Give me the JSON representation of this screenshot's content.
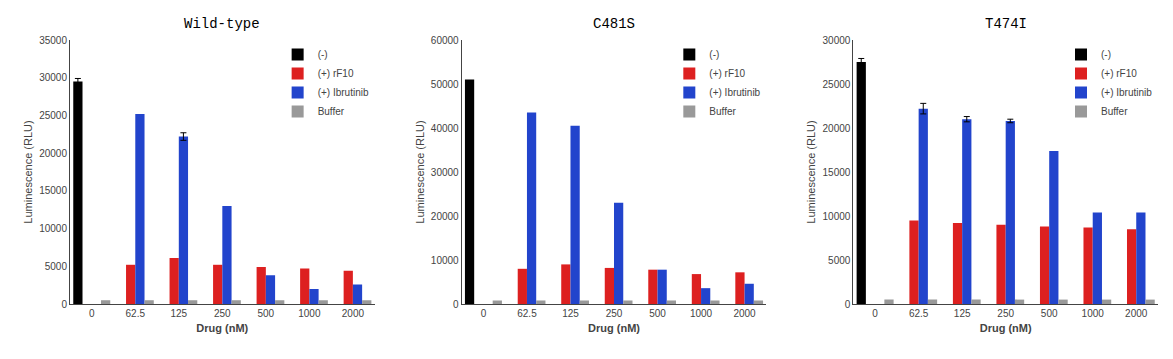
{
  "chart_data": [
    {
      "type": "bar",
      "title": "Wild-type",
      "xlabel": "Drug (nM)",
      "ylabel": "Luminescence (RLU)",
      "categories": [
        "0",
        "62.5",
        "125",
        "250",
        "500",
        "1000",
        "2000"
      ],
      "series": [
        {
          "name": "(-)",
          "color": "#000000",
          "values": [
            29500,
            0,
            0,
            0,
            0,
            0,
            0
          ],
          "errors": [
            400,
            0,
            0,
            0,
            0,
            0,
            0
          ]
        },
        {
          "name": "(+) rF10",
          "color": "#dd2020",
          "values": [
            0,
            5200,
            6100,
            5200,
            4900,
            4700,
            4400
          ],
          "errors": [
            0,
            0,
            0,
            0,
            0,
            0,
            0
          ]
        },
        {
          "name": "(+) Ibrutinib",
          "color": "#2244cc",
          "values": [
            0,
            25200,
            22200,
            13000,
            3800,
            2000,
            2600
          ],
          "errors": [
            0,
            0,
            500,
            0,
            0,
            0,
            0
          ]
        },
        {
          "name": "Buffer",
          "color": "#999999",
          "values": [
            500,
            500,
            500,
            500,
            500,
            500,
            500
          ],
          "errors": [
            0,
            0,
            0,
            0,
            0,
            0,
            0
          ]
        }
      ],
      "ylim": [
        0,
        35000
      ],
      "yticks": [
        0,
        5000,
        10000,
        15000,
        20000,
        25000,
        30000,
        35000
      ],
      "grid": false,
      "legend": "upper right"
    },
    {
      "type": "bar",
      "title": "C481S",
      "xlabel": "Drug (nM)",
      "ylabel": "Luminescence (RLU)",
      "categories": [
        "0",
        "62.5",
        "125",
        "250",
        "500",
        "1000",
        "2000"
      ],
      "series": [
        {
          "name": "(-)",
          "color": "#000000",
          "values": [
            51000,
            0,
            0,
            0,
            0,
            0,
            0
          ],
          "errors": [
            0,
            0,
            0,
            0,
            0,
            0,
            0
          ]
        },
        {
          "name": "(+) rF10",
          "color": "#dd2020",
          "values": [
            0,
            8000,
            9000,
            8200,
            7800,
            6800,
            7200
          ],
          "errors": [
            0,
            0,
            0,
            0,
            0,
            0,
            0
          ]
        },
        {
          "name": "(+) Ibrutinib",
          "color": "#2244cc",
          "values": [
            0,
            43500,
            40500,
            23000,
            7800,
            3600,
            4600
          ],
          "errors": [
            0,
            0,
            0,
            0,
            0,
            0,
            0
          ]
        },
        {
          "name": "Buffer",
          "color": "#999999",
          "values": [
            800,
            800,
            800,
            800,
            800,
            800,
            800
          ],
          "errors": [
            0,
            0,
            0,
            0,
            0,
            0,
            0
          ]
        }
      ],
      "ylim": [
        0,
        60000
      ],
      "yticks": [
        0,
        10000,
        20000,
        30000,
        40000,
        50000,
        60000
      ],
      "grid": false,
      "legend": "upper right"
    },
    {
      "type": "bar",
      "title": "T474I",
      "xlabel": "Drug (nM)",
      "ylabel": "Luminescence (RLU)",
      "categories": [
        "0",
        "62.5",
        "125",
        "250",
        "500",
        "1000",
        "2000"
      ],
      "series": [
        {
          "name": "(-)",
          "color": "#000000",
          "values": [
            27500,
            0,
            0,
            0,
            0,
            0,
            0
          ],
          "errors": [
            400,
            0,
            0,
            0,
            0,
            0,
            0
          ]
        },
        {
          "name": "(+) rF10",
          "color": "#dd2020",
          "values": [
            0,
            9500,
            9200,
            9000,
            8800,
            8700,
            8500
          ],
          "errors": [
            0,
            0,
            0,
            0,
            0,
            0,
            0
          ]
        },
        {
          "name": "(+) Ibrutinib",
          "color": "#2244cc",
          "values": [
            0,
            22200,
            21000,
            20800,
            17400,
            10400,
            10400
          ],
          "errors": [
            0,
            600,
            300,
            200,
            0,
            0,
            0
          ]
        },
        {
          "name": "Buffer",
          "color": "#999999",
          "values": [
            500,
            500,
            500,
            500,
            500,
            500,
            500
          ],
          "errors": [
            0,
            0,
            0,
            0,
            0,
            0,
            0
          ]
        }
      ],
      "ylim": [
        0,
        30000
      ],
      "yticks": [
        0,
        5000,
        10000,
        15000,
        20000,
        25000,
        30000
      ],
      "grid": false,
      "legend": "upper right"
    }
  ]
}
